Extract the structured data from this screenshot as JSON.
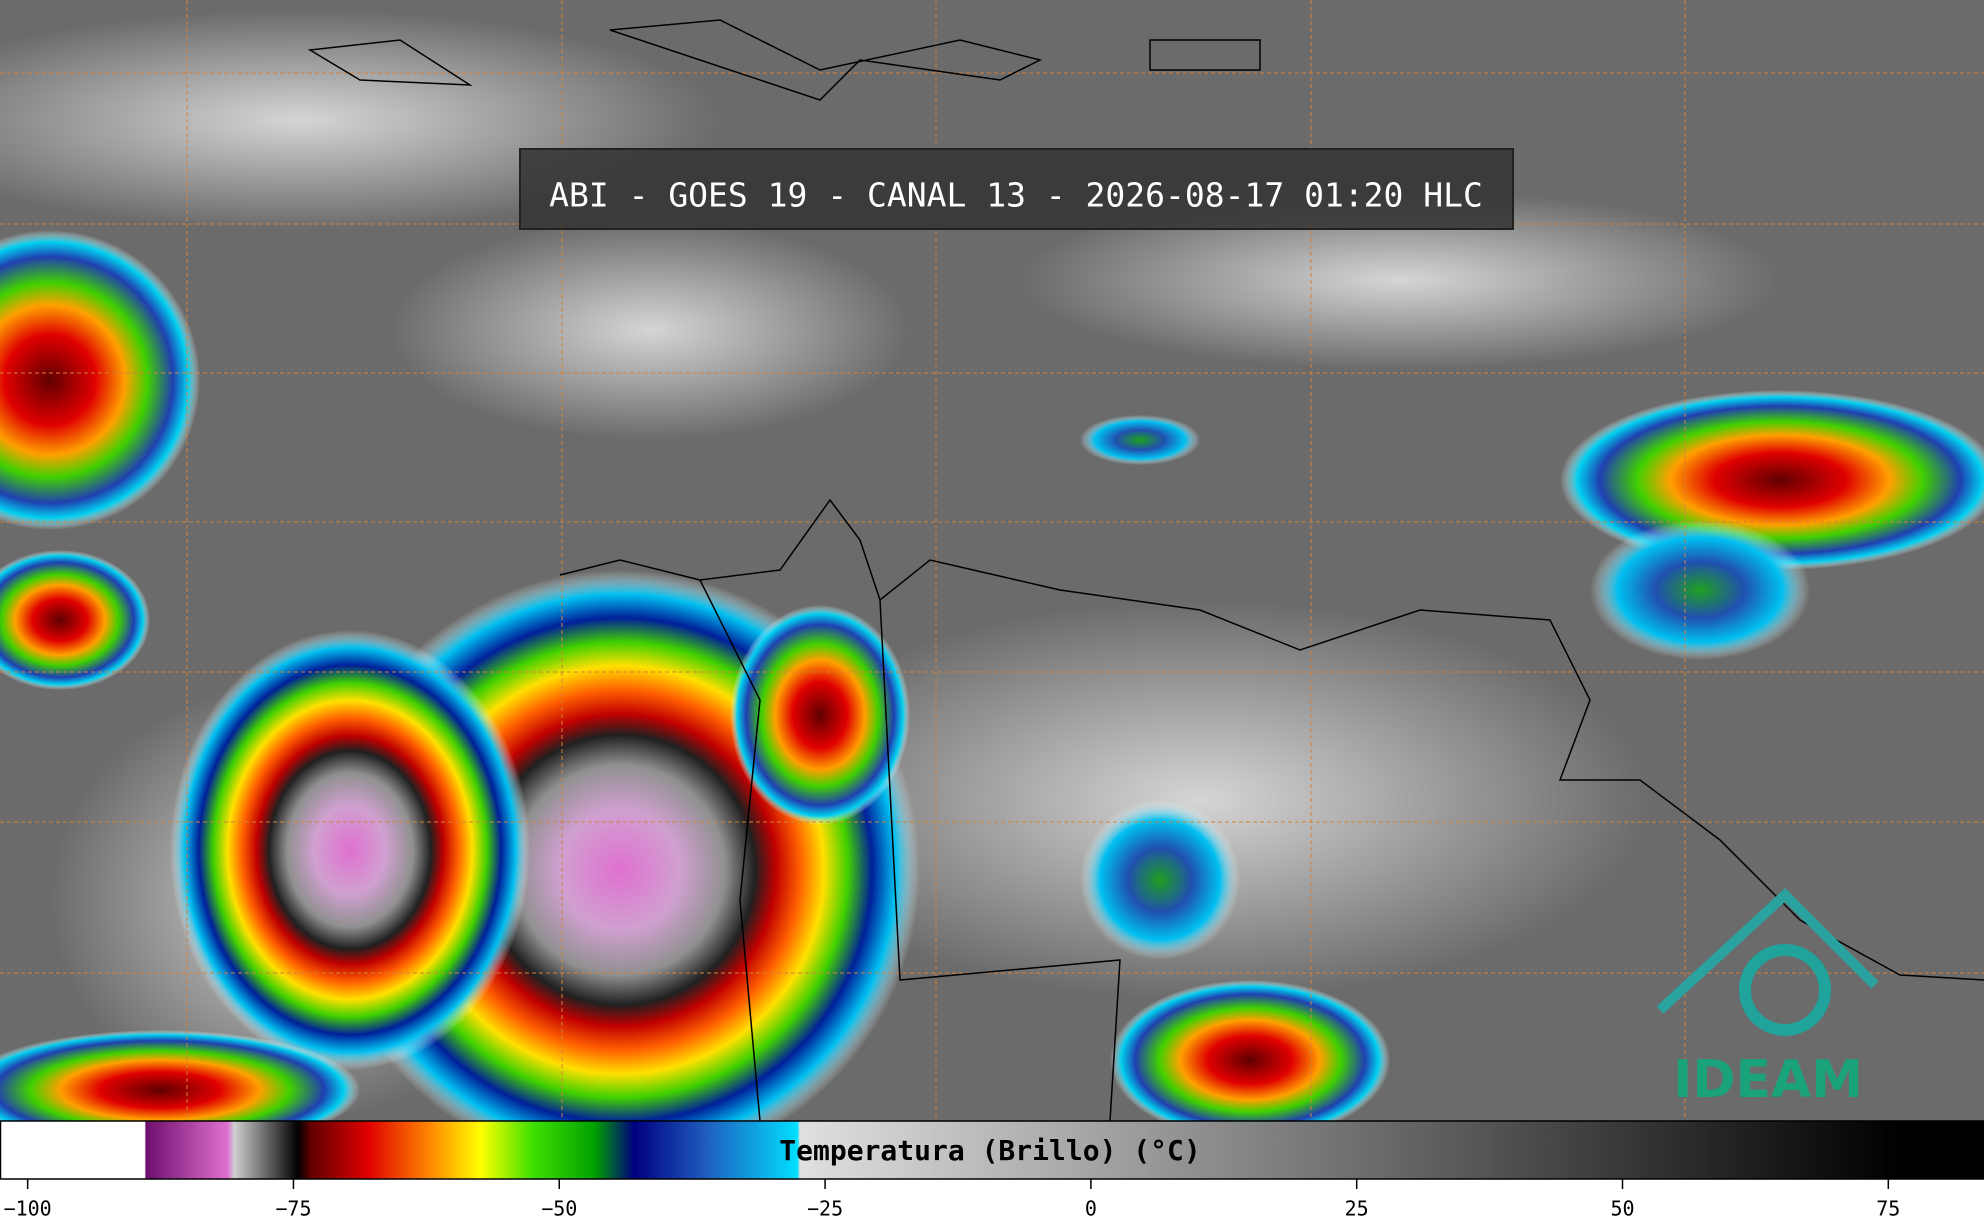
{
  "title": "ABI - GOES 19 - CANAL 13 - 2026-08-17 01:20 HLC",
  "logo": "IDEAM",
  "colorbar": {
    "label": "Temperatura (Brillo) (°C)",
    "lim": [
      -102.6,
      84
    ],
    "ticks": [
      {
        "value": -100,
        "label": "−100"
      },
      {
        "value": -75,
        "label": "−75"
      },
      {
        "value": -50,
        "label": "−50"
      },
      {
        "value": -25,
        "label": "−25"
      },
      0,
      25,
      50,
      75
    ],
    "colormap": [
      {
        "value": -102.6,
        "color": "#ffffff"
      },
      {
        "value": -89,
        "color": "#ffffff"
      },
      {
        "value": -88.9,
        "color": "#6e0f6e"
      },
      {
        "value": -81.2,
        "color": "#e070d0"
      },
      {
        "value": -80.6,
        "color": "#d0d0d0"
      },
      {
        "value": -74.6,
        "color": "#000000"
      },
      {
        "value": -73.4,
        "color": "#600000"
      },
      {
        "value": -68,
        "color": "#e00000"
      },
      {
        "value": -62,
        "color": "#ff8c00"
      },
      {
        "value": -57.4,
        "color": "#ffff00"
      },
      {
        "value": -52.6,
        "color": "#40e000"
      },
      {
        "value": -46.7,
        "color": "#00a000"
      },
      {
        "value": -43,
        "color": "#000080"
      },
      {
        "value": -36,
        "color": "#2060c0"
      },
      {
        "value": -27.6,
        "color": "#00e0ff"
      },
      {
        "value": -27.4,
        "color": "#e0e0e0"
      },
      {
        "value": 76,
        "color": "#000000"
      },
      {
        "value": 84,
        "color": "#000000"
      }
    ]
  }
}
